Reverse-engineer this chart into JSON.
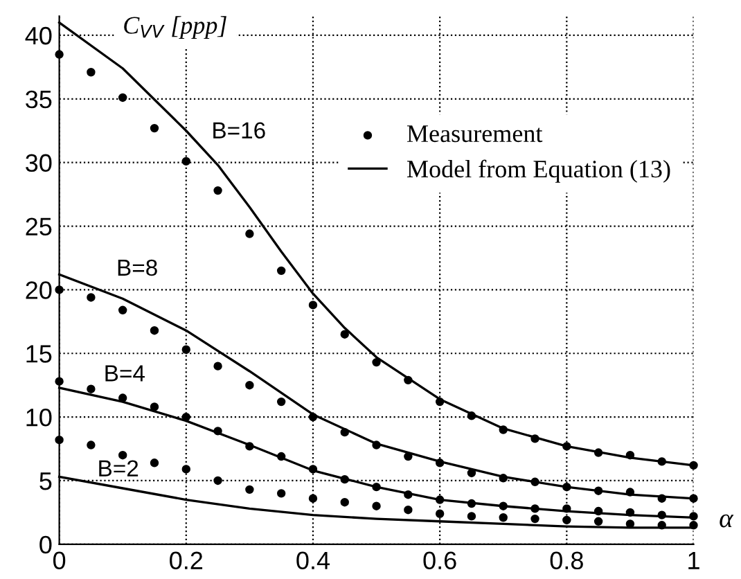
{
  "chart_data": {
    "type": "line",
    "ylabel": "C$_{VV}$ [ppp]",
    "xlabel": "α",
    "xlim": [
      0,
      1
    ],
    "ylim": [
      0,
      41.5
    ],
    "xticks": [
      0,
      0.2,
      0.4,
      0.6,
      0.8,
      1
    ],
    "yticks": [
      0,
      5,
      10,
      15,
      20,
      25,
      30,
      35,
      40
    ],
    "grid": true,
    "legend": "right",
    "series": [
      {
        "type": "scatter",
        "name": "Measurement",
        "color": "#000000",
        "marker": "circle",
        "x": [
          0,
          0.05,
          0.1,
          0.15,
          0.2,
          0.25,
          0.3,
          0.35,
          0.4,
          0.45,
          0.5,
          0.55,
          0.6,
          0.65,
          0.7,
          0.75,
          0.8,
          0.85,
          0.9,
          0.95,
          1
        ],
        "values": [
          38.5,
          37.1,
          35.1,
          32.7,
          30.1,
          27.8,
          24.4,
          21.5,
          18.8,
          16.5,
          14.3,
          12.9,
          11.2,
          10.1,
          9.0,
          8.3,
          7.7,
          7.2,
          7.0,
          6.5,
          6.2
        ]
      },
      {
        "type": "scatter",
        "color": "#000000",
        "marker": "circle",
        "x": [
          0,
          0.05,
          0.1,
          0.15,
          0.2,
          0.25,
          0.3,
          0.35,
          0.4,
          0.45,
          0.5,
          0.55,
          0.6,
          0.65,
          0.7,
          0.75,
          0.8,
          0.85,
          0.9,
          0.95,
          1
        ],
        "values": [
          20.0,
          19.4,
          18.4,
          16.8,
          15.3,
          14.0,
          12.5,
          11.2,
          10.0,
          8.8,
          7.8,
          6.9,
          6.4,
          5.6,
          5.2,
          4.9,
          4.5,
          4.2,
          4.1,
          3.6,
          3.6
        ]
      },
      {
        "type": "scatter",
        "color": "#000000",
        "marker": "circle",
        "x": [
          0,
          0.05,
          0.1,
          0.15,
          0.2,
          0.25,
          0.3,
          0.35,
          0.4,
          0.45,
          0.5,
          0.55,
          0.6,
          0.65,
          0.7,
          0.75,
          0.8,
          0.85,
          0.9,
          0.95,
          1
        ],
        "values": [
          12.8,
          12.2,
          11.5,
          10.8,
          10.0,
          8.9,
          7.7,
          6.9,
          5.9,
          5.1,
          4.5,
          3.9,
          3.5,
          3.2,
          3.0,
          2.8,
          2.8,
          2.6,
          2.5,
          2.3,
          2.2
        ]
      },
      {
        "type": "scatter",
        "color": "#000000",
        "marker": "circle",
        "x": [
          0,
          0.05,
          0.1,
          0.15,
          0.2,
          0.25,
          0.3,
          0.35,
          0.4,
          0.45,
          0.5,
          0.55,
          0.6,
          0.65,
          0.7,
          0.75,
          0.8,
          0.85,
          0.9,
          0.95,
          1
        ],
        "values": [
          8.2,
          7.8,
          7.0,
          6.4,
          5.9,
          5.0,
          4.3,
          4.0,
          3.6,
          3.3,
          3.0,
          2.7,
          2.4,
          2.2,
          2.1,
          2.0,
          1.9,
          1.8,
          1.6,
          1.5,
          1.5
        ]
      },
      {
        "name": "Model from Equation (13)",
        "color": "#000000",
        "line_style": "solid",
        "x": [
          0,
          0.1,
          0.2,
          0.25,
          0.3,
          0.35,
          0.4,
          0.45,
          0.5,
          0.6,
          0.7,
          0.8,
          0.9,
          1
        ],
        "values": [
          41.0,
          37.4,
          32.5,
          29.8,
          26.5,
          23.0,
          19.7,
          17.0,
          14.7,
          11.4,
          9.1,
          7.7,
          6.8,
          6.2
        ]
      },
      {
        "type": "line",
        "color": "#000000",
        "line_style": "solid",
        "x": [
          0,
          0.1,
          0.2,
          0.3,
          0.4,
          0.5,
          0.6,
          0.7,
          0.8,
          0.9,
          1
        ],
        "values": [
          21.2,
          19.3,
          16.8,
          13.6,
          10.2,
          7.9,
          6.5,
          5.3,
          4.5,
          3.9,
          3.6
        ]
      },
      {
        "type": "line",
        "color": "#000000",
        "line_style": "solid",
        "x": [
          0,
          0.1,
          0.2,
          0.3,
          0.4,
          0.5,
          0.6,
          0.7,
          0.8,
          0.9,
          1
        ],
        "values": [
          12.3,
          11.2,
          9.7,
          7.8,
          5.8,
          4.5,
          3.5,
          3.0,
          2.6,
          2.3,
          2.1
        ]
      },
      {
        "type": "line",
        "color": "#000000",
        "line_style": "solid",
        "x": [
          0,
          0.1,
          0.2,
          0.3,
          0.4,
          0.5,
          0.6,
          0.7,
          0.8,
          0.9,
          1
        ],
        "values": [
          5.3,
          4.4,
          3.5,
          2.8,
          2.3,
          2.0,
          1.8,
          1.6,
          1.4,
          1.3,
          1.3
        ]
      }
    ],
    "annotations": [
      "B=16",
      "B=8",
      "B=4",
      "B=2"
    ]
  }
}
